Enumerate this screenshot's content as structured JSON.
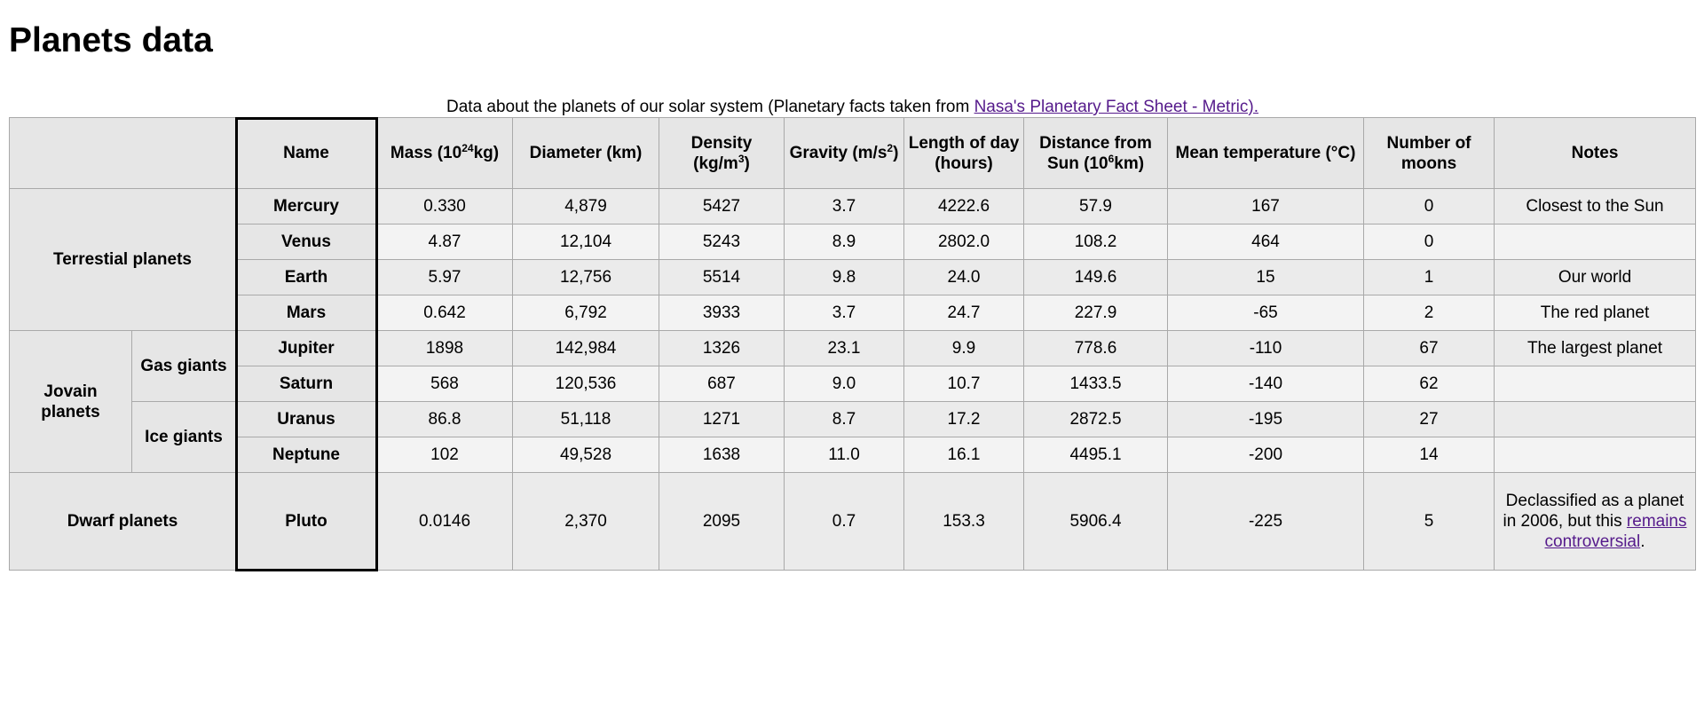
{
  "page": {
    "title": "Planets data"
  },
  "caption": {
    "text": "Data about the planets of our solar system (Planetary facts taken from ",
    "link_text": "Nasa's Planetary Fact Sheet - Metric)."
  },
  "headers": {
    "name": "Name",
    "mass_prefix": "Mass (10",
    "mass_sup": "24",
    "mass_suffix": "kg)",
    "diameter": "Diameter (km)",
    "density_prefix": "Density (kg/m",
    "density_sup": "3",
    "density_suffix": ")",
    "gravity_prefix": "Gravity (m/s",
    "gravity_sup": "2",
    "gravity_suffix": ")",
    "length_of_day": "Length of day (hours)",
    "distance_prefix": "Distance from Sun (10",
    "distance_sup": "6",
    "distance_suffix": "km)",
    "mean_temperature": "Mean temperature (°C)",
    "moons": "Number of moons",
    "notes": "Notes"
  },
  "groups": {
    "terrestrial": "Terrestial planets",
    "jovian": "Jovain planets",
    "gas_giants": "Gas giants",
    "ice_giants": "Ice giants",
    "dwarf": "Dwarf planets"
  },
  "rows": [
    {
      "name": "Mercury",
      "mass": "0.330",
      "diameter": "4,879",
      "density": "5427",
      "gravity": "3.7",
      "day": "4222.6",
      "distance": "57.9",
      "temp": "167",
      "moons": "0",
      "notes": "Closest to the Sun"
    },
    {
      "name": "Venus",
      "mass": "4.87",
      "diameter": "12,104",
      "density": "5243",
      "gravity": "8.9",
      "day": "2802.0",
      "distance": "108.2",
      "temp": "464",
      "moons": "0",
      "notes": ""
    },
    {
      "name": "Earth",
      "mass": "5.97",
      "diameter": "12,756",
      "density": "5514",
      "gravity": "9.8",
      "day": "24.0",
      "distance": "149.6",
      "temp": "15",
      "moons": "1",
      "notes": "Our world"
    },
    {
      "name": "Mars",
      "mass": "0.642",
      "diameter": "6,792",
      "density": "3933",
      "gravity": "3.7",
      "day": "24.7",
      "distance": "227.9",
      "temp": "-65",
      "moons": "2",
      "notes": "The red planet"
    },
    {
      "name": "Jupiter",
      "mass": "1898",
      "diameter": "142,984",
      "density": "1326",
      "gravity": "23.1",
      "day": "9.9",
      "distance": "778.6",
      "temp": "-110",
      "moons": "67",
      "notes": "The largest planet"
    },
    {
      "name": "Saturn",
      "mass": "568",
      "diameter": "120,536",
      "density": "687",
      "gravity": "9.0",
      "day": "10.7",
      "distance": "1433.5",
      "temp": "-140",
      "moons": "62",
      "notes": ""
    },
    {
      "name": "Uranus",
      "mass": "86.8",
      "diameter": "51,118",
      "density": "1271",
      "gravity": "8.7",
      "day": "17.2",
      "distance": "2872.5",
      "temp": "-195",
      "moons": "27",
      "notes": ""
    },
    {
      "name": "Neptune",
      "mass": "102",
      "diameter": "49,528",
      "density": "1638",
      "gravity": "11.0",
      "day": "16.1",
      "distance": "4495.1",
      "temp": "-200",
      "moons": "14",
      "notes": ""
    },
    {
      "name": "Pluto",
      "mass": "0.0146",
      "diameter": "2,370",
      "density": "2095",
      "gravity": "0.7",
      "day": "153.3",
      "distance": "5906.4",
      "temp": "-225",
      "moons": "5",
      "notes_text": "Declassified as a planet in 2006, but this ",
      "notes_link": "remains controversial",
      "notes_end": "."
    }
  ]
}
